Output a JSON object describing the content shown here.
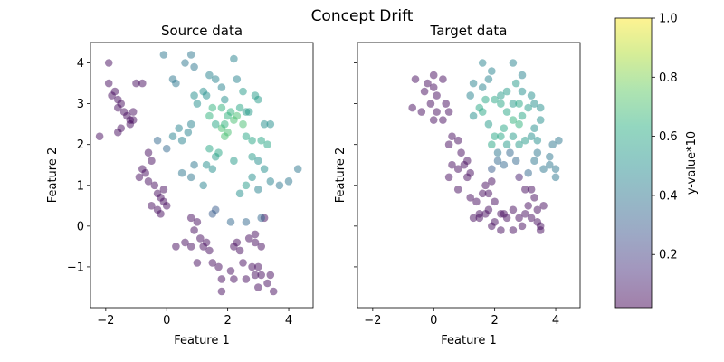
{
  "figure": {
    "title": "Concept Drift"
  },
  "colorbar": {
    "label": "y-value*10",
    "range": [
      0.02,
      1.0
    ],
    "ticks": [
      0.2,
      0.4,
      0.6,
      0.8,
      1.0
    ],
    "tick_labels": [
      "0.2",
      "0.4",
      "0.6",
      "0.8",
      "1.0"
    ],
    "colormap": "viridis",
    "alpha": 0.5
  },
  "chart_data": [
    {
      "type": "scatter",
      "title": "Source data",
      "xlabel": "Feature 1",
      "ylabel": "Feature 2",
      "xlim": [
        -2.5,
        4.8
      ],
      "ylim": [
        -2.0,
        4.5
      ],
      "xticks": [
        -2,
        0,
        2,
        4
      ],
      "xtick_labels": [
        "−2",
        "0",
        "2",
        "4"
      ],
      "yticks": [
        -1,
        0,
        1,
        2,
        3,
        4
      ],
      "ytick_labels": [
        "−1",
        "0",
        "1",
        "2",
        "3",
        "4"
      ],
      "show_y_tick_labels": true,
      "points": [
        [
          -1.9,
          4.0,
          0.05
        ],
        [
          -1.9,
          3.5,
          0.05
        ],
        [
          -1.7,
          3.3,
          0.05
        ],
        [
          -1.8,
          3.2,
          0.05
        ],
        [
          -1.6,
          3.1,
          0.05
        ],
        [
          -1.5,
          3.0,
          0.05
        ],
        [
          -1.6,
          2.9,
          0.05
        ],
        [
          -1.4,
          2.8,
          0.05
        ],
        [
          -1.3,
          2.7,
          0.05
        ],
        [
          -1.2,
          2.6,
          0.05
        ],
        [
          -1.5,
          2.4,
          0.05
        ],
        [
          -1.6,
          2.3,
          0.05
        ],
        [
          -1.1,
          2.8,
          0.05
        ],
        [
          -1.0,
          3.5,
          0.05
        ],
        [
          -0.8,
          3.5,
          0.05
        ],
        [
          -2.2,
          2.2,
          0.05
        ],
        [
          -1.2,
          2.5,
          0.05
        ],
        [
          -1.1,
          2.6,
          0.05
        ],
        [
          -0.6,
          1.8,
          0.05
        ],
        [
          -0.5,
          1.6,
          0.05
        ],
        [
          -0.8,
          1.4,
          0.05
        ],
        [
          -0.7,
          1.3,
          0.05
        ],
        [
          -0.9,
          1.2,
          0.05
        ],
        [
          -0.4,
          1.0,
          0.05
        ],
        [
          -0.6,
          1.1,
          0.05
        ],
        [
          -0.3,
          0.8,
          0.05
        ],
        [
          -0.2,
          0.7,
          0.05
        ],
        [
          -0.1,
          0.9,
          0.05
        ],
        [
          -0.5,
          0.5,
          0.05
        ],
        [
          -0.3,
          0.4,
          0.05
        ],
        [
          -0.2,
          0.3,
          0.05
        ],
        [
          -0.1,
          0.6,
          0.05
        ],
        [
          0.0,
          0.5,
          0.05
        ],
        [
          0.8,
          0.2,
          0.05
        ],
        [
          1.0,
          0.1,
          0.05
        ],
        [
          0.9,
          -0.1,
          0.05
        ],
        [
          1.1,
          -0.3,
          0.05
        ],
        [
          0.6,
          -0.4,
          0.05
        ],
        [
          0.3,
          -0.5,
          0.05
        ],
        [
          0.8,
          -0.5,
          0.05
        ],
        [
          1.2,
          -0.5,
          0.05
        ],
        [
          1.3,
          -0.4,
          0.05
        ],
        [
          1.4,
          -0.6,
          0.05
        ],
        [
          1.0,
          -0.9,
          0.05
        ],
        [
          1.5,
          -0.9,
          0.05
        ],
        [
          1.7,
          -1.0,
          0.05
        ],
        [
          1.8,
          -1.3,
          0.05
        ],
        [
          1.8,
          -1.6,
          0.05
        ],
        [
          2.2,
          -0.5,
          0.05
        ],
        [
          2.4,
          -0.6,
          0.05
        ],
        [
          2.7,
          -0.3,
          0.05
        ],
        [
          2.9,
          -0.4,
          0.05
        ],
        [
          3.1,
          -0.5,
          0.05
        ],
        [
          2.5,
          -0.9,
          0.05
        ],
        [
          2.8,
          -1.0,
          0.05
        ],
        [
          3.0,
          -1.0,
          0.05
        ],
        [
          2.9,
          -1.2,
          0.05
        ],
        [
          3.1,
          -1.2,
          0.05
        ],
        [
          3.4,
          -1.2,
          0.05
        ],
        [
          2.6,
          -1.3,
          0.05
        ],
        [
          2.2,
          -1.3,
          0.05
        ],
        [
          3.3,
          -1.4,
          0.05
        ],
        [
          3.0,
          -1.5,
          0.05
        ],
        [
          3.5,
          -1.6,
          0.05
        ],
        [
          2.1,
          -1.1,
          0.05
        ],
        [
          2.3,
          -0.4,
          0.05
        ],
        [
          3.2,
          0.2,
          0.05
        ],
        [
          2.9,
          -0.2,
          0.05
        ],
        [
          1.5,
          0.3,
          0.3
        ],
        [
          1.6,
          0.4,
          0.3
        ],
        [
          2.1,
          0.1,
          0.35
        ],
        [
          2.6,
          0.1,
          0.35
        ],
        [
          3.1,
          0.2,
          0.35
        ],
        [
          0.5,
          1.3,
          0.4
        ],
        [
          0.9,
          1.5,
          0.4
        ],
        [
          0.8,
          1.2,
          0.4
        ],
        [
          1.2,
          1.0,
          0.45
        ],
        [
          1.3,
          1.5,
          0.5
        ],
        [
          1.5,
          1.4,
          0.5
        ],
        [
          1.6,
          1.7,
          0.55
        ],
        [
          1.4,
          1.9,
          0.6
        ],
        [
          1.7,
          1.8,
          0.6
        ],
        [
          2.2,
          1.6,
          0.55
        ],
        [
          2.4,
          0.8,
          0.5
        ],
        [
          2.6,
          1.0,
          0.55
        ],
        [
          2.8,
          1.2,
          0.5
        ],
        [
          3.0,
          1.6,
          0.5
        ],
        [
          3.2,
          1.4,
          0.5
        ],
        [
          3.4,
          1.1,
          0.45
        ],
        [
          3.7,
          1.0,
          0.4
        ],
        [
          4.0,
          1.1,
          0.4
        ],
        [
          4.3,
          1.4,
          0.4
        ],
        [
          3.0,
          0.9,
          0.45
        ],
        [
          0.5,
          2.1,
          0.45
        ],
        [
          0.7,
          2.3,
          0.45
        ],
        [
          0.4,
          2.4,
          0.45
        ],
        [
          0.2,
          2.2,
          0.45
        ],
        [
          0.8,
          2.5,
          0.45
        ],
        [
          1.8,
          2.9,
          0.65
        ],
        [
          2.1,
          2.8,
          0.65
        ],
        [
          2.3,
          2.7,
          0.7
        ],
        [
          2.5,
          2.5,
          0.7
        ],
        [
          1.8,
          2.4,
          0.7
        ],
        [
          1.9,
          2.2,
          0.7
        ],
        [
          2.0,
          2.3,
          0.7
        ],
        [
          2.2,
          2.6,
          0.7
        ],
        [
          2.6,
          2.2,
          0.6
        ],
        [
          2.8,
          2.1,
          0.6
        ],
        [
          3.1,
          2.1,
          0.6
        ],
        [
          3.3,
          2.0,
          0.6
        ],
        [
          2.4,
          2.9,
          0.6
        ],
        [
          2.7,
          2.8,
          0.55
        ],
        [
          3.0,
          3.1,
          0.55
        ],
        [
          2.9,
          3.2,
          0.55
        ],
        [
          3.2,
          2.5,
          0.5
        ],
        [
          3.4,
          2.5,
          0.5
        ],
        [
          1.5,
          2.9,
          0.65
        ],
        [
          1.4,
          2.7,
          0.65
        ],
        [
          0.9,
          3.2,
          0.5
        ],
        [
          1.0,
          3.0,
          0.5
        ],
        [
          1.2,
          3.3,
          0.5
        ],
        [
          1.3,
          3.2,
          0.5
        ],
        [
          1.6,
          3.6,
          0.45
        ],
        [
          1.4,
          3.7,
          0.45
        ],
        [
          1.8,
          3.4,
          0.45
        ],
        [
          1.9,
          3.1,
          0.5
        ],
        [
          2.3,
          3.6,
          0.45
        ],
        [
          2.5,
          3.3,
          0.55
        ],
        [
          2.6,
          2.8,
          0.55
        ],
        [
          0.2,
          3.6,
          0.4
        ],
        [
          0.3,
          3.5,
          0.4
        ],
        [
          0.6,
          4.0,
          0.4
        ],
        [
          0.8,
          4.2,
          0.4
        ],
        [
          -0.1,
          4.2,
          0.4
        ],
        [
          0.9,
          3.9,
          0.4
        ],
        [
          2.2,
          4.1,
          0.45
        ],
        [
          0.0,
          1.9,
          0.35
        ],
        [
          -0.3,
          2.1,
          0.35
        ],
        [
          1.6,
          2.5,
          0.6
        ],
        [
          2.0,
          2.7,
          0.65
        ],
        [
          2.8,
          1.7,
          0.55
        ],
        [
          1.9,
          2.5,
          0.65
        ]
      ]
    },
    {
      "type": "scatter",
      "title": "Target data",
      "xlabel": "Feature 1",
      "ylabel": "Feature 2",
      "xlim": [
        -2.5,
        4.8
      ],
      "ylim": [
        -2.0,
        4.5
      ],
      "xticks": [
        -2,
        0,
        2,
        4
      ],
      "xtick_labels": [
        "−2",
        "0",
        "2",
        "4"
      ],
      "yticks": [
        -1,
        0,
        1,
        2,
        3,
        4
      ],
      "ytick_labels": [
        "−1",
        "0",
        "1",
        "2",
        "3",
        "4"
      ],
      "show_y_tick_labels": false,
      "points": [
        [
          -0.6,
          3.6,
          0.05
        ],
        [
          -0.2,
          3.5,
          0.05
        ],
        [
          0.0,
          3.7,
          0.05
        ],
        [
          0.3,
          3.6,
          0.05
        ],
        [
          0.0,
          3.4,
          0.05
        ],
        [
          -0.3,
          3.3,
          0.05
        ],
        [
          0.1,
          3.2,
          0.05
        ],
        [
          0.4,
          3.0,
          0.05
        ],
        [
          -0.1,
          3.0,
          0.05
        ],
        [
          -0.4,
          2.8,
          0.05
        ],
        [
          0.1,
          2.8,
          0.05
        ],
        [
          0.3,
          2.6,
          0.05
        ],
        [
          -0.7,
          2.9,
          0.05
        ],
        [
          0.5,
          2.8,
          0.05
        ],
        [
          0.0,
          2.6,
          0.05
        ],
        [
          0.6,
          2.2,
          0.05
        ],
        [
          0.5,
          2.0,
          0.05
        ],
        [
          0.8,
          2.1,
          0.05
        ],
        [
          0.9,
          1.8,
          0.05
        ],
        [
          1.1,
          1.6,
          0.05
        ],
        [
          0.6,
          1.5,
          0.05
        ],
        [
          0.8,
          1.4,
          0.05
        ],
        [
          1.0,
          1.5,
          0.05
        ],
        [
          1.1,
          1.2,
          0.05
        ],
        [
          0.5,
          1.2,
          0.05
        ],
        [
          1.2,
          1.3,
          0.05
        ],
        [
          0.8,
          0.9,
          0.05
        ],
        [
          1.2,
          0.7,
          0.05
        ],
        [
          1.4,
          0.6,
          0.05
        ],
        [
          1.6,
          0.8,
          0.05
        ],
        [
          1.7,
          1.0,
          0.05
        ],
        [
          1.8,
          0.8,
          0.05
        ],
        [
          1.9,
          1.1,
          0.05
        ],
        [
          2.0,
          0.6,
          0.05
        ],
        [
          1.8,
          0.4,
          0.05
        ],
        [
          2.2,
          0.3,
          0.05
        ],
        [
          2.4,
          0.2,
          0.05
        ],
        [
          2.6,
          0.4,
          0.05
        ],
        [
          2.8,
          0.2,
          0.05
        ],
        [
          3.0,
          0.3,
          0.05
        ],
        [
          3.2,
          0.2,
          0.05
        ],
        [
          3.4,
          0.1,
          0.05
        ],
        [
          3.1,
          0.5,
          0.05
        ],
        [
          3.3,
          0.7,
          0.05
        ],
        [
          3.4,
          0.4,
          0.05
        ],
        [
          3.5,
          0.0,
          0.05
        ],
        [
          2.9,
          0.0,
          0.05
        ],
        [
          2.6,
          -0.1,
          0.05
        ],
        [
          2.2,
          -0.1,
          0.05
        ],
        [
          1.5,
          0.2,
          0.05
        ],
        [
          1.3,
          0.2,
          0.05
        ],
        [
          2.0,
          0.1,
          0.05
        ],
        [
          3.0,
          0.9,
          0.05
        ],
        [
          3.2,
          0.9,
          0.05
        ],
        [
          2.8,
          1.2,
          0.1
        ],
        [
          1.5,
          0.3,
          0.05
        ],
        [
          1.7,
          0.3,
          0.05
        ],
        [
          1.9,
          0.0,
          0.05
        ],
        [
          2.3,
          0.3,
          0.05
        ],
        [
          3.5,
          -0.1,
          0.05
        ],
        [
          3.6,
          0.5,
          0.05
        ],
        [
          1.9,
          1.4,
          0.3
        ],
        [
          2.1,
          1.6,
          0.35
        ],
        [
          2.5,
          1.8,
          0.35
        ],
        [
          2.7,
          1.6,
          0.35
        ],
        [
          2.3,
          1.5,
          0.35
        ],
        [
          3.1,
          1.3,
          0.35
        ],
        [
          3.3,
          1.6,
          0.4
        ],
        [
          3.4,
          1.8,
          0.4
        ],
        [
          3.6,
          1.4,
          0.4
        ],
        [
          3.8,
          1.5,
          0.4
        ],
        [
          4.0,
          1.4,
          0.4
        ],
        [
          4.0,
          1.2,
          0.4
        ],
        [
          3.8,
          1.7,
          0.4
        ],
        [
          4.1,
          2.1,
          0.4
        ],
        [
          3.9,
          2.0,
          0.4
        ],
        [
          2.6,
          2.2,
          0.55
        ],
        [
          2.0,
          2.2,
          0.6
        ],
        [
          2.2,
          2.2,
          0.6
        ],
        [
          2.4,
          2.0,
          0.55
        ],
        [
          2.8,
          2.0,
          0.55
        ],
        [
          3.0,
          2.1,
          0.55
        ],
        [
          3.2,
          2.2,
          0.5
        ],
        [
          3.4,
          2.1,
          0.5
        ],
        [
          3.3,
          2.4,
          0.5
        ],
        [
          1.8,
          2.5,
          0.55
        ],
        [
          1.6,
          2.8,
          0.6
        ],
        [
          1.3,
          2.7,
          0.5
        ],
        [
          1.5,
          2.9,
          0.6
        ],
        [
          1.7,
          3.1,
          0.6
        ],
        [
          2.0,
          3.1,
          0.6
        ],
        [
          2.2,
          3.0,
          0.6
        ],
        [
          2.4,
          2.8,
          0.6
        ],
        [
          2.6,
          2.6,
          0.65
        ],
        [
          2.8,
          2.5,
          0.65
        ],
        [
          2.9,
          2.7,
          0.6
        ],
        [
          3.1,
          2.9,
          0.55
        ],
        [
          3.3,
          3.0,
          0.5
        ],
        [
          3.5,
          2.9,
          0.5
        ],
        [
          3.5,
          2.6,
          0.5
        ],
        [
          2.4,
          3.3,
          0.55
        ],
        [
          2.7,
          3.5,
          0.55
        ],
        [
          2.9,
          3.3,
          0.5
        ],
        [
          3.2,
          3.2,
          0.5
        ],
        [
          1.2,
          3.2,
          0.45
        ],
        [
          1.3,
          3.5,
          0.45
        ],
        [
          1.6,
          3.4,
          0.45
        ],
        [
          1.8,
          3.6,
          0.45
        ],
        [
          1.9,
          3.8,
          0.45
        ],
        [
          1.6,
          4.0,
          0.45
        ],
        [
          2.6,
          4.0,
          0.45
        ],
        [
          2.9,
          3.7,
          0.45
        ],
        [
          2.2,
          3.2,
          0.55
        ],
        [
          2.6,
          3.0,
          0.55
        ],
        [
          2.8,
          3.0,
          0.6
        ],
        [
          1.9,
          2.0,
          0.6
        ],
        [
          2.3,
          2.4,
          0.6
        ],
        [
          2.1,
          1.8,
          0.4
        ]
      ]
    }
  ]
}
